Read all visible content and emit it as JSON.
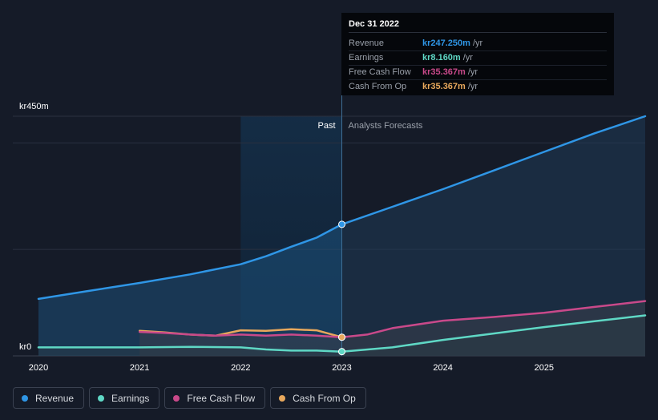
{
  "chart_data": {
    "type": "line",
    "y_unit_prefix": "kr",
    "ylim": [
      0,
      450
    ],
    "y_tick_labels": [
      {
        "value": 450,
        "label": "kr450m"
      },
      {
        "value": 0,
        "label": "kr0"
      }
    ],
    "x_ticks": [
      2020,
      2021,
      2022,
      2023,
      2024,
      2025
    ],
    "xlim": [
      2020,
      2026
    ],
    "divider_x": 2023,
    "past_label": "Past",
    "forecast_label": "Analysts Forecasts",
    "series": [
      {
        "name": "Revenue",
        "color": "#2f96e6",
        "x": [
          2020,
          2020.5,
          2021,
          2021.5,
          2022,
          2022.25,
          2022.5,
          2022.75,
          2023,
          2023.5,
          2024,
          2024.5,
          2025,
          2025.5,
          2026
        ],
        "y": [
          107,
          122,
          137,
          153,
          172,
          187,
          205,
          222,
          247,
          280,
          313,
          348,
          383,
          418,
          450
        ]
      },
      {
        "name": "Earnings",
        "color": "#5fd8c5",
        "x": [
          2020,
          2020.5,
          2021,
          2021.5,
          2022,
          2022.25,
          2022.5,
          2022.75,
          2023,
          2023.5,
          2024,
          2024.5,
          2025,
          2025.5,
          2026
        ],
        "y": [
          16,
          16,
          16,
          17,
          16,
          12,
          10,
          10,
          8,
          16,
          30,
          42,
          54,
          65,
          76
        ]
      },
      {
        "name": "Free Cash Flow",
        "color": "#c9498a",
        "x": [
          2021,
          2021.25,
          2021.5,
          2021.75,
          2022,
          2022.25,
          2022.5,
          2022.75,
          2023,
          2023.25,
          2023.5,
          2024,
          2024.5,
          2025,
          2025.5,
          2026
        ],
        "y": [
          45,
          43,
          40,
          38,
          40,
          38,
          40,
          38,
          35,
          40,
          52,
          66,
          73,
          81,
          92,
          103
        ]
      },
      {
        "name": "Cash From Op",
        "color": "#e8a85c",
        "x": [
          2021,
          2021.25,
          2021.5,
          2021.75,
          2022,
          2022.25,
          2022.5,
          2022.75,
          2023
        ],
        "y": [
          47,
          44,
          40,
          38,
          48,
          47,
          50,
          48,
          35
        ]
      }
    ]
  },
  "tooltip": {
    "date": "Dec 31 2022",
    "unit": "/yr",
    "rows": [
      {
        "label": "Revenue",
        "value": "kr247.250m",
        "color": "#2f96e6"
      },
      {
        "label": "Earnings",
        "value": "kr8.160m",
        "color": "#5fd8c5"
      },
      {
        "label": "Free Cash Flow",
        "value": "kr35.367m",
        "color": "#c9498a"
      },
      {
        "label": "Cash From Op",
        "value": "kr35.367m",
        "color": "#e8a85c"
      }
    ]
  },
  "legend": [
    {
      "label": "Revenue",
      "color": "#2f96e6"
    },
    {
      "label": "Earnings",
      "color": "#5fd8c5"
    },
    {
      "label": "Free Cash Flow",
      "color": "#c9498a"
    },
    {
      "label": "Cash From Op",
      "color": "#e8a85c"
    }
  ]
}
